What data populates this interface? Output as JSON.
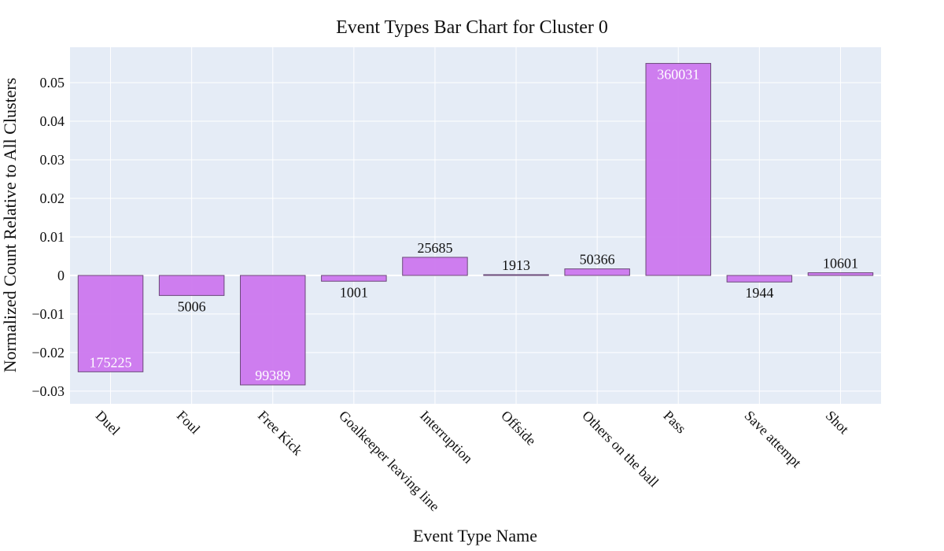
{
  "chart_data": {
    "type": "bar",
    "title": "Event Types Bar Chart for Cluster 0",
    "xlabel": "Event Type Name",
    "ylabel": "Normalized Count Relative to All Clusters",
    "categories": [
      "Duel",
      "Foul",
      "Free Kick",
      "Goalkeeper leaving line",
      "Interruption",
      "Offside",
      "Others on the ball",
      "Pass",
      "Save attempt",
      "Shot"
    ],
    "values": [
      -0.025,
      -0.0052,
      -0.0284,
      -0.0015,
      0.0047,
      0.0002,
      0.0017,
      0.055,
      -0.0017,
      0.0007
    ],
    "labels": [
      "175225",
      "5006",
      "99389",
      "1001",
      "25685",
      "1913",
      "50366",
      "360031",
      "1944",
      "10601"
    ],
    "label_inside": [
      true,
      false,
      true,
      false,
      false,
      false,
      false,
      true,
      false,
      false
    ],
    "ylim": [
      -0.0333,
      0.0592
    ],
    "yticks": [
      -0.03,
      -0.02,
      -0.01,
      0,
      0.01,
      0.02,
      0.03,
      0.04,
      0.05
    ],
    "ytick_labels": [
      "−0.03",
      "−0.02",
      "−0.01",
      "0",
      "0.01",
      "0.02",
      "0.03",
      "0.04",
      "0.05"
    ],
    "bar_color": "#cc77ee",
    "plot_bg": "#e5ecf6",
    "grid": true,
    "legend": "none"
  }
}
